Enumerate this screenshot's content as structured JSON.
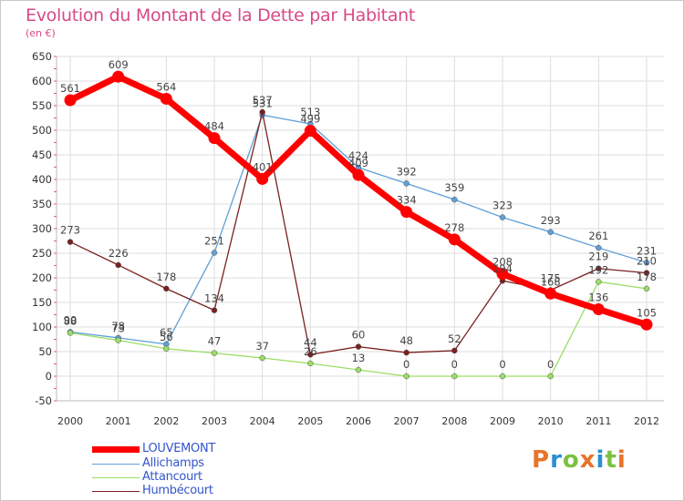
{
  "chart_data": {
    "type": "line",
    "title": "Evolution du Montant de la Dette par Habitant",
    "subtitle": "(en €)",
    "x": [
      "2000",
      "2001",
      "2002",
      "2003",
      "2004",
      "2005",
      "2006",
      "2007",
      "2008",
      "2009",
      "2010",
      "2011",
      "2012"
    ],
    "ylim": [
      -50,
      650
    ],
    "yticks": [
      -50,
      0,
      50,
      100,
      150,
      200,
      250,
      300,
      350,
      400,
      450,
      500,
      550,
      600,
      650
    ],
    "grid": true,
    "legend_position": "bottom-left",
    "series": [
      {
        "name": "LOUVEMONT",
        "color": "#ff0000",
        "values": [
          561,
          609,
          564,
          484,
          401,
          499,
          409,
          334,
          278,
          208,
          168,
          136,
          105
        ]
      },
      {
        "name": "Allichamps",
        "color": "#5f9fd6",
        "values": [
          90,
          78,
          65,
          251,
          531,
          513,
          424,
          392,
          359,
          323,
          293,
          261,
          231
        ]
      },
      {
        "name": "Attancourt",
        "color": "#99dd66",
        "values": [
          88,
          73,
          56,
          47,
          37,
          26,
          13,
          0,
          0,
          0,
          0,
          192,
          178
        ]
      },
      {
        "name": "Humbécourt",
        "color": "#7a2020",
        "values": [
          273,
          226,
          178,
          134,
          537,
          44,
          60,
          48,
          52,
          194,
          175,
          219,
          210
        ]
      }
    ]
  },
  "logo": {
    "text": "Proxiti",
    "colors": [
      "#e8742a",
      "#2a8fd4",
      "#7cc142",
      "#e8742a",
      "#2a8fd4",
      "#7cc142",
      "#e8742a"
    ]
  }
}
